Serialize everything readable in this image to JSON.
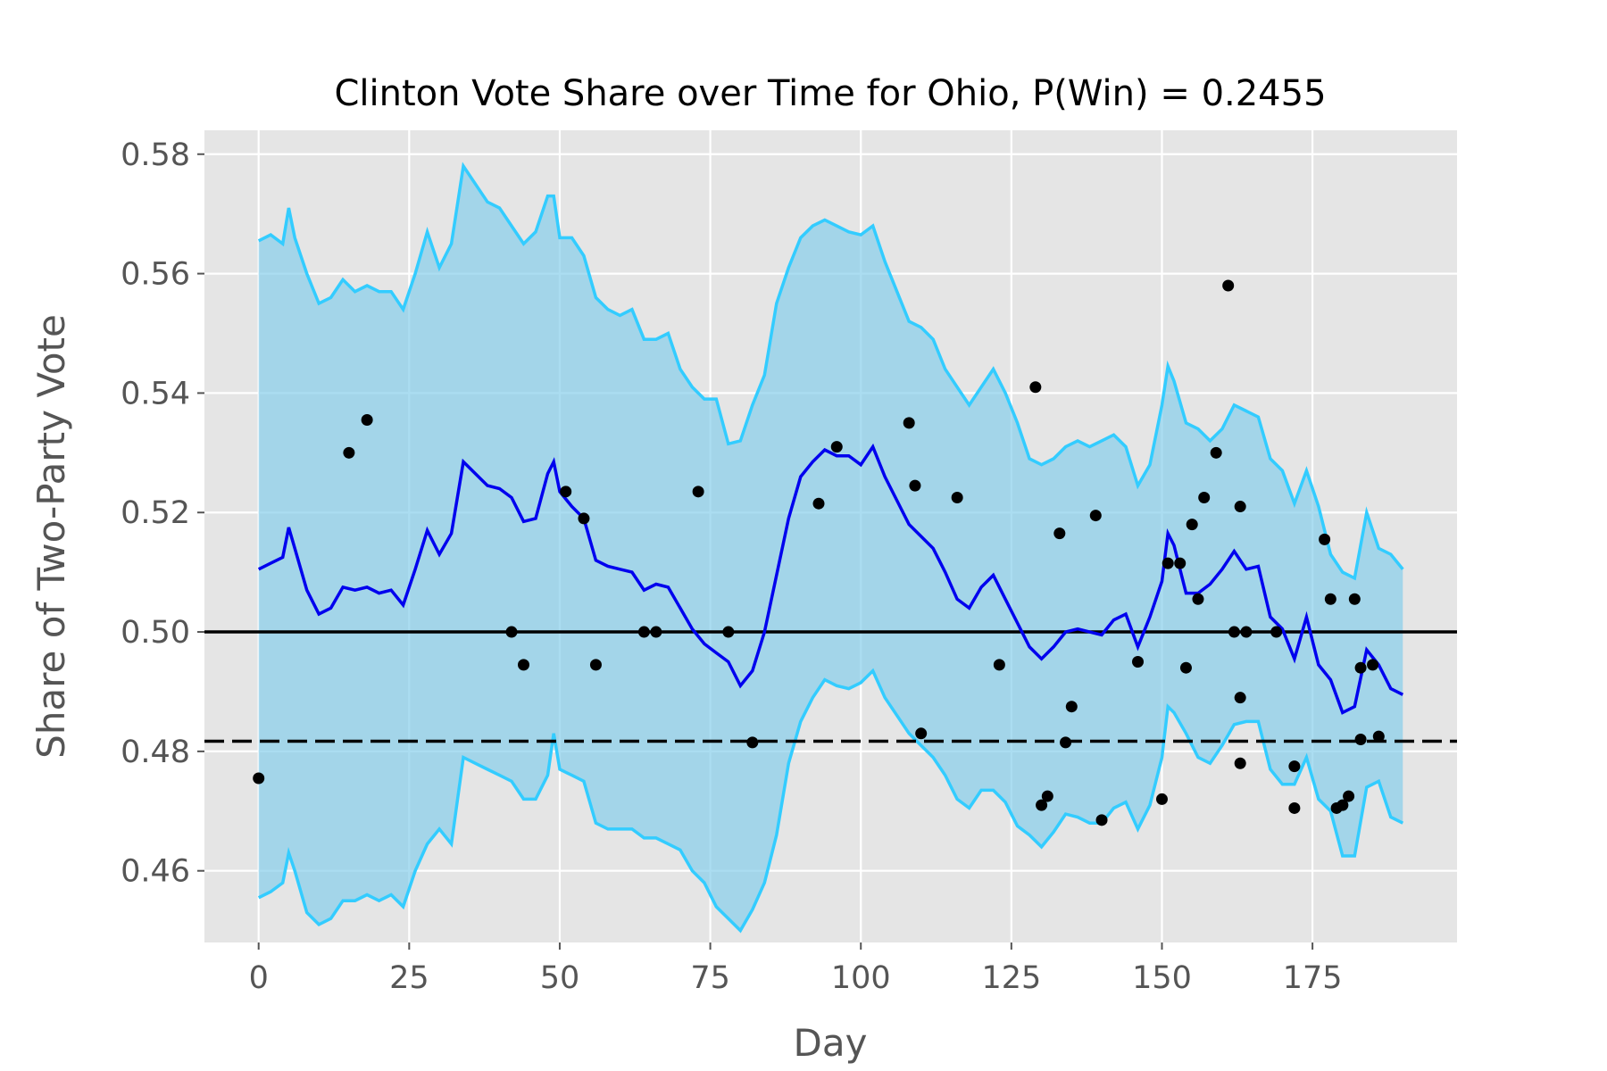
{
  "chart_data": {
    "type": "line",
    "title": "Clinton Vote Share over Time for Ohio, P(Win) = 0.2455",
    "xlabel": "Day",
    "ylabel": "Share of Two-Party Vote",
    "xlim": [
      -9,
      199
    ],
    "ylim": [
      0.448,
      0.584
    ],
    "xticks": [
      0,
      25,
      50,
      75,
      100,
      125,
      150,
      175
    ],
    "yticks": [
      0.46,
      0.48,
      0.5,
      0.52,
      0.54,
      0.56,
      0.58
    ],
    "ytick_labels": [
      "0.46",
      "0.48",
      "0.50",
      "0.52",
      "0.54",
      "0.56",
      "0.58"
    ],
    "grid": true,
    "legend": false,
    "colors": {
      "plot_background": "#e5e5e5",
      "band_fill": "#87ceeb",
      "band_edge": "#33ccff",
      "mean_line": "#0000ee",
      "reference": "#000000",
      "poll_point": "#000000",
      "grid": "#ffffff"
    },
    "band": {
      "x": [
        0,
        2,
        4,
        5,
        6,
        8,
        10,
        12,
        14,
        16,
        18,
        20,
        22,
        24,
        26,
        28,
        30,
        32,
        34,
        36,
        38,
        40,
        42,
        44,
        46,
        48,
        49,
        50,
        52,
        54,
        56,
        58,
        60,
        62,
        64,
        66,
        68,
        70,
        72,
        74,
        76,
        78,
        80,
        82,
        84,
        86,
        88,
        90,
        92,
        94,
        96,
        98,
        100,
        102,
        104,
        106,
        108,
        110,
        112,
        114,
        116,
        118,
        120,
        122,
        124,
        126,
        128,
        130,
        132,
        134,
        136,
        138,
        140,
        142,
        144,
        146,
        148,
        150,
        151,
        152,
        154,
        156,
        158,
        160,
        162,
        164,
        166,
        168,
        170,
        172,
        174,
        176,
        178,
        180,
        182,
        184,
        186,
        188,
        190
      ],
      "upper": [
        0.5655,
        0.5665,
        0.565,
        0.571,
        0.566,
        0.56,
        0.555,
        0.556,
        0.559,
        0.557,
        0.558,
        0.557,
        0.557,
        0.554,
        0.56,
        0.567,
        0.561,
        0.565,
        0.578,
        0.575,
        0.572,
        0.571,
        0.568,
        0.565,
        0.567,
        0.573,
        0.573,
        0.566,
        0.566,
        0.563,
        0.556,
        0.554,
        0.553,
        0.554,
        0.549,
        0.549,
        0.55,
        0.544,
        0.541,
        0.539,
        0.539,
        0.5315,
        0.532,
        0.538,
        0.543,
        0.555,
        0.561,
        0.566,
        0.568,
        0.569,
        0.568,
        0.567,
        0.5665,
        0.568,
        0.562,
        0.557,
        0.552,
        0.551,
        0.549,
        0.544,
        0.541,
        0.538,
        0.541,
        0.544,
        0.54,
        0.535,
        0.529,
        0.528,
        0.529,
        0.531,
        0.532,
        0.531,
        0.532,
        0.533,
        0.531,
        0.5245,
        0.528,
        0.538,
        0.5445,
        0.542,
        0.535,
        0.534,
        0.532,
        0.534,
        0.538,
        0.537,
        0.536,
        0.529,
        0.527,
        0.5215,
        0.527,
        0.521,
        0.513,
        0.51,
        0.509,
        0.52,
        0.514,
        0.513,
        0.5105
      ],
      "lower": [
        0.4555,
        0.4565,
        0.458,
        0.463,
        0.46,
        0.453,
        0.451,
        0.452,
        0.455,
        0.455,
        0.456,
        0.455,
        0.456,
        0.454,
        0.46,
        0.4645,
        0.467,
        0.4645,
        0.479,
        0.478,
        0.477,
        0.476,
        0.475,
        0.472,
        0.472,
        0.476,
        0.483,
        0.477,
        0.476,
        0.475,
        0.468,
        0.467,
        0.467,
        0.467,
        0.4655,
        0.4655,
        0.4645,
        0.4635,
        0.46,
        0.458,
        0.454,
        0.452,
        0.45,
        0.4535,
        0.458,
        0.466,
        0.478,
        0.485,
        0.489,
        0.492,
        0.491,
        0.4905,
        0.4915,
        0.4935,
        0.489,
        0.486,
        0.483,
        0.481,
        0.479,
        0.476,
        0.472,
        0.4705,
        0.4735,
        0.4735,
        0.4715,
        0.4675,
        0.466,
        0.464,
        0.4665,
        0.4695,
        0.469,
        0.468,
        0.468,
        0.4705,
        0.4715,
        0.467,
        0.471,
        0.479,
        0.4875,
        0.4865,
        0.483,
        0.479,
        0.478,
        0.481,
        0.4845,
        0.485,
        0.485,
        0.477,
        0.4745,
        0.4745,
        0.479,
        0.472,
        0.47,
        0.4625,
        0.4625,
        0.474,
        0.475,
        0.469,
        0.468
      ]
    },
    "series": [
      {
        "x": [
          0,
          2,
          4,
          5,
          6,
          8,
          10,
          12,
          14,
          16,
          18,
          20,
          22,
          24,
          26,
          28,
          30,
          32,
          34,
          36,
          38,
          40,
          42,
          44,
          46,
          48,
          49,
          50,
          52,
          54,
          56,
          58,
          60,
          62,
          64,
          66,
          68,
          70,
          72,
          74,
          76,
          78,
          80,
          82,
          84,
          86,
          88,
          90,
          92,
          94,
          96,
          98,
          100,
          102,
          104,
          106,
          108,
          110,
          112,
          114,
          116,
          118,
          120,
          122,
          124,
          126,
          128,
          130,
          132,
          134,
          136,
          138,
          140,
          142,
          144,
          146,
          148,
          150,
          151,
          152,
          154,
          156,
          158,
          160,
          162,
          164,
          166,
          168,
          170,
          172,
          174,
          176,
          178,
          180,
          182,
          184,
          186,
          188,
          190
        ],
        "values": [
          0.5105,
          0.5115,
          0.5125,
          0.5175,
          0.514,
          0.507,
          0.503,
          0.504,
          0.5075,
          0.507,
          0.5075,
          0.5065,
          0.507,
          0.5045,
          0.5105,
          0.517,
          0.513,
          0.5165,
          0.5285,
          0.5265,
          0.5245,
          0.524,
          0.5225,
          0.5185,
          0.519,
          0.5265,
          0.5285,
          0.5235,
          0.521,
          0.519,
          0.512,
          0.511,
          0.5105,
          0.51,
          0.507,
          0.508,
          0.5075,
          0.504,
          0.5005,
          0.498,
          0.4965,
          0.495,
          0.491,
          0.4935,
          0.5,
          0.5095,
          0.519,
          0.526,
          0.5285,
          0.5305,
          0.5295,
          0.5295,
          0.528,
          0.531,
          0.526,
          0.522,
          0.518,
          0.516,
          0.514,
          0.51,
          0.5055,
          0.504,
          0.5075,
          0.5095,
          0.5055,
          0.5015,
          0.4975,
          0.4955,
          0.4975,
          0.5,
          0.5005,
          0.5,
          0.4995,
          0.502,
          0.503,
          0.4975,
          0.5025,
          0.5085,
          0.5165,
          0.5145,
          0.5065,
          0.5065,
          0.508,
          0.5105,
          0.5135,
          0.5105,
          0.511,
          0.5025,
          0.5005,
          0.4955,
          0.5025,
          0.4945,
          0.492,
          0.4865,
          0.4875,
          0.497,
          0.4945,
          0.4905,
          0.4895
        ]
      }
    ],
    "reference_lines": [
      {
        "y": 0.5,
        "style": "solid"
      },
      {
        "y": 0.4817,
        "style": "dashed"
      }
    ],
    "points": {
      "x": [
        0,
        15,
        18,
        42,
        44,
        51,
        54,
        56,
        64,
        66,
        73,
        78,
        82,
        93,
        96,
        108,
        109,
        110,
        116,
        123,
        129,
        130,
        131,
        133,
        134,
        135,
        139,
        140,
        146,
        150,
        151,
        153,
        154,
        155,
        156,
        157,
        159,
        161,
        162,
        163,
        163,
        163,
        164,
        169,
        172,
        172,
        177,
        178,
        179,
        180,
        181,
        182,
        183,
        183,
        185,
        186
      ],
      "y": [
        0.4755,
        0.53,
        0.5355,
        0.5,
        0.4945,
        0.5235,
        0.519,
        0.4945,
        0.5,
        0.5,
        0.5235,
        0.5,
        0.4815,
        0.5215,
        0.531,
        0.535,
        0.5245,
        0.483,
        0.5225,
        0.4945,
        0.541,
        0.471,
        0.4725,
        0.5165,
        0.4815,
        0.4875,
        0.5195,
        0.4685,
        0.495,
        0.472,
        0.5115,
        0.5115,
        0.494,
        0.518,
        0.5055,
        0.5225,
        0.53,
        0.558,
        0.5,
        0.521,
        0.489,
        0.478,
        0.5,
        0.5,
        0.4775,
        0.4705,
        0.5155,
        0.5055,
        0.4705,
        0.471,
        0.4725,
        0.5055,
        0.494,
        0.482,
        0.4945,
        0.4825
      ]
    }
  }
}
